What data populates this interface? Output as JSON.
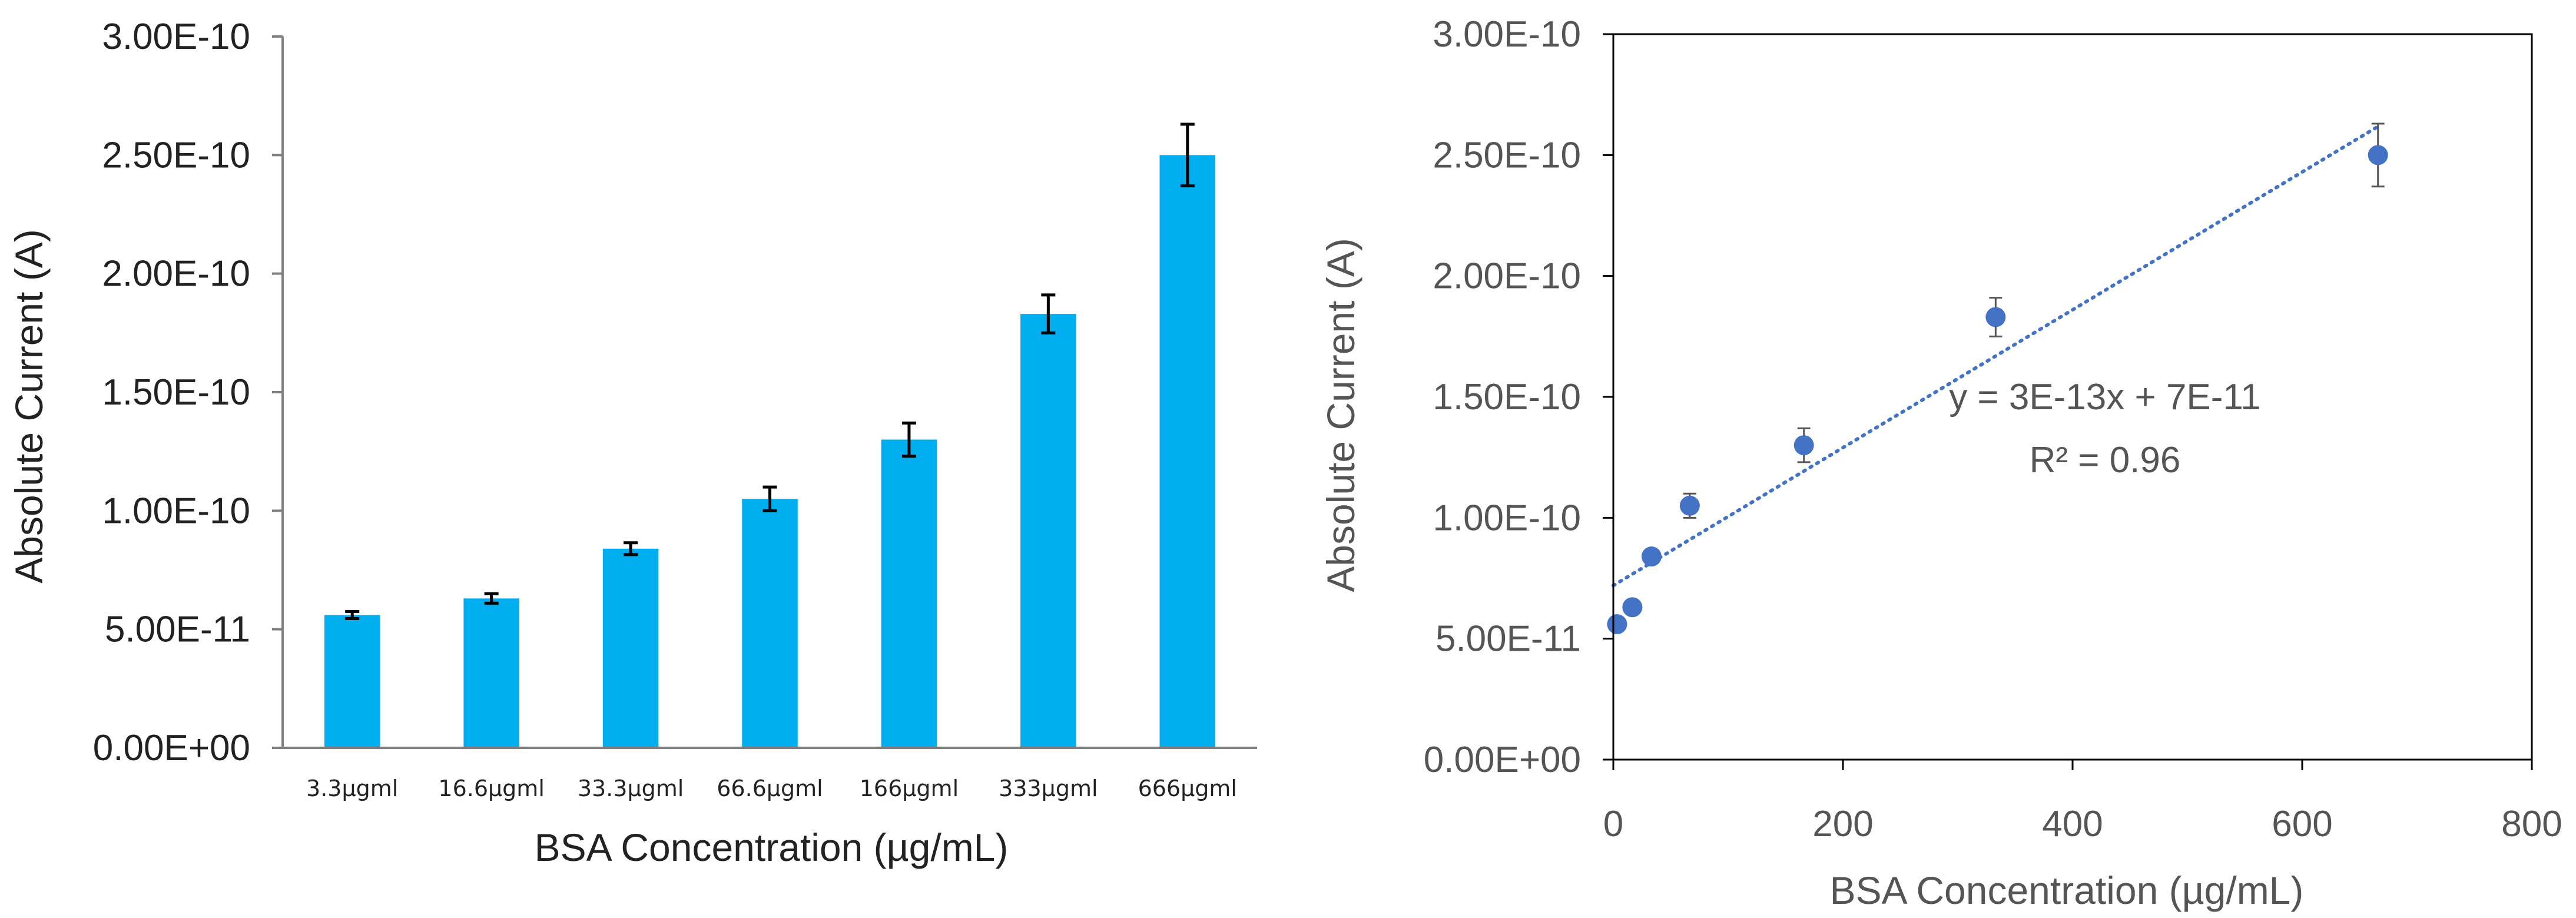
{
  "chart_data": [
    {
      "type": "bar",
      "title": "",
      "categories": [
        "3.3µgml",
        "16.6µgml",
        "33.3µgml",
        "66.6µgml",
        "166µgml",
        "333µgml",
        "666µgml"
      ],
      "values": [
        5.6e-11,
        6.3e-11,
        8.4e-11,
        1.05e-10,
        1.3e-10,
        1.83e-10,
        2.5e-10
      ],
      "errors": [
        1.5e-12,
        2e-12,
        2.5e-12,
        5e-12,
        7e-12,
        8e-12,
        1.3e-11
      ],
      "ylim": [
        0,
        3e-10
      ],
      "yticks": [
        "0.00E+00",
        "5.00E-11",
        "1.00E-10",
        "1.50E-10",
        "2.00E-10",
        "2.50E-10",
        "3.00E-10"
      ],
      "xlabel": "BSA Concentration (µg/mL)",
      "ylabel": "Absolute Current (A)",
      "bar_color": "#00AEEF",
      "error_color": "#000000"
    },
    {
      "type": "scatter",
      "title": "",
      "x": [
        3.3,
        16.6,
        33.3,
        66.6,
        166,
        333,
        666
      ],
      "y": [
        5.6e-11,
        6.3e-11,
        8.4e-11,
        1.05e-10,
        1.3e-10,
        1.83e-10,
        2.5e-10
      ],
      "errors": [
        1.5e-12,
        2e-12,
        2.5e-12,
        5e-12,
        7e-12,
        8e-12,
        1.3e-11
      ],
      "xlim": [
        0,
        800
      ],
      "ylim": [
        0,
        3e-10
      ],
      "xticks": [
        "0",
        "200",
        "400",
        "600",
        "800"
      ],
      "yticks": [
        "0.00E+00",
        "5.00E-11",
        "1.00E-10",
        "1.50E-10",
        "2.00E-10",
        "2.50E-10",
        "3.00E-10"
      ],
      "xlabel": "BSA Concentration (µg/mL)",
      "ylabel": "Absolute Current (A)",
      "trendline": {
        "slope": 2.85e-13,
        "intercept": 7.2e-11,
        "x_range": [
          0,
          666
        ],
        "style": "dotted"
      },
      "annotation": {
        "equation": "y = 3E-13x + 7E-11",
        "r_squared": "R² = 0.96"
      },
      "point_color": "#4472C4",
      "error_color": "#555555"
    }
  ]
}
